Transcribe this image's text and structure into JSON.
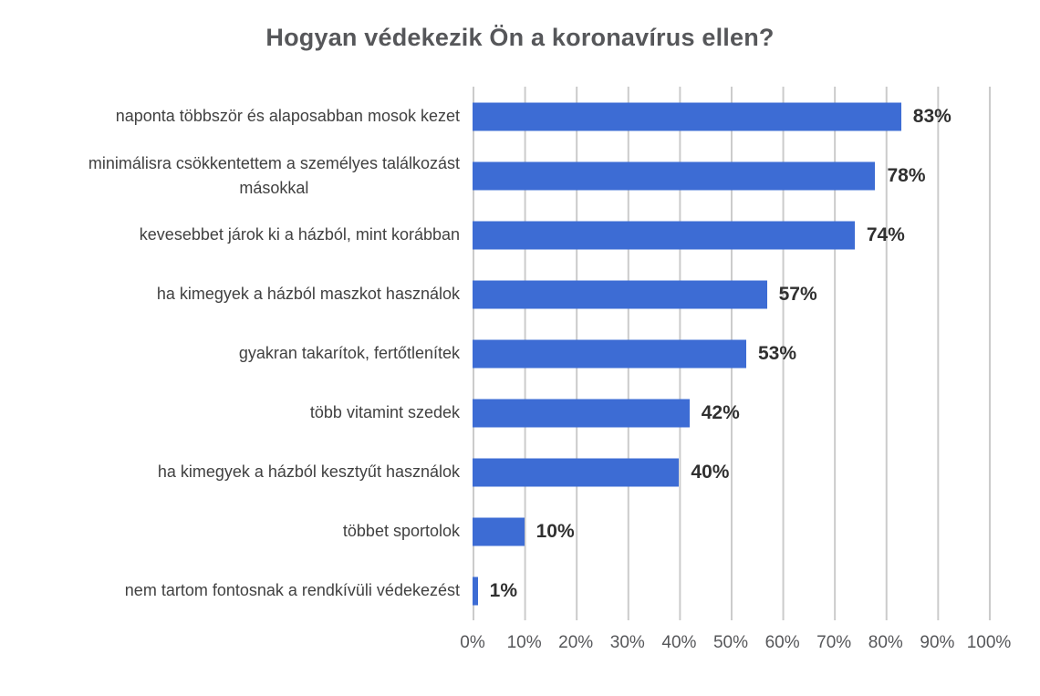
{
  "chart_data": {
    "type": "bar",
    "orientation": "horizontal",
    "title": "Hogyan védekezik Ön a koronavírus ellen?",
    "categories": [
      "naponta többször és alaposabban mosok kezet",
      "minimálisra csökkentettem a személyes találkozást\nmásokkal",
      "kevesebbet járok ki a házból, mint korábban",
      "ha kimegyek a házból maszkot használok",
      "gyakran takarítok, fertőtlenítek",
      "több vitamint szedek",
      "ha kimegyek a házból kesztyűt használok",
      "többet sportolok",
      "nem tartom fontosnak a rendkívüli védekezést"
    ],
    "values": [
      83,
      78,
      74,
      57,
      53,
      42,
      40,
      10,
      1
    ],
    "value_labels": [
      "83%",
      "78%",
      "74%",
      "57%",
      "53%",
      "42%",
      "40%",
      "10%",
      "1%"
    ],
    "x_ticks": [
      "0%",
      "10%",
      "20%",
      "30%",
      "40%",
      "50%",
      "60%",
      "70%",
      "80%",
      "90%",
      "100%"
    ],
    "xlim": [
      0,
      100
    ],
    "grid": "vertical",
    "legend": "none",
    "bar_color": "#3d6cd4",
    "grid_color": "#cbcbcb",
    "title_color": "#56575a",
    "label_color": "#414141",
    "value_color": "#303030"
  }
}
